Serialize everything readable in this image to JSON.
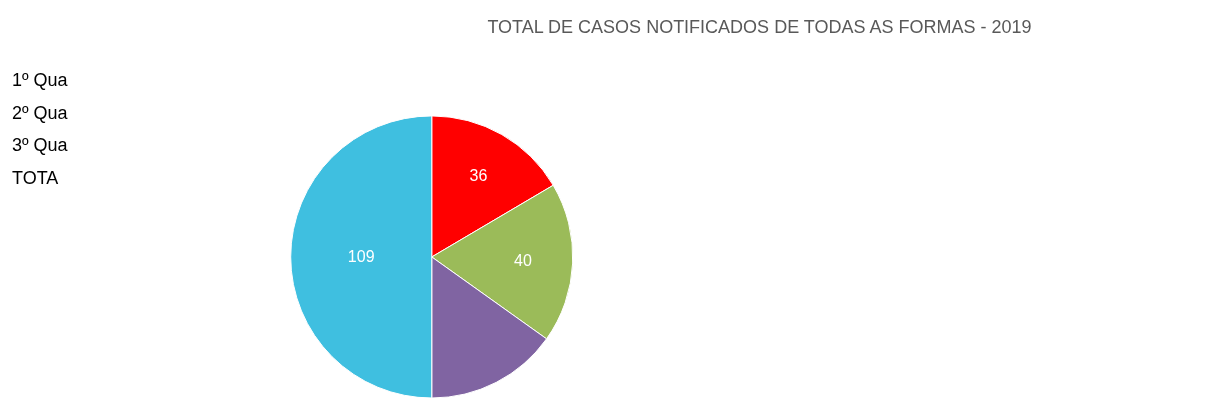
{
  "chart_data": {
    "type": "pie",
    "title": "TOTAL DE CASOS NOTIFICADOS DE TODAS AS FORMAS - 2019",
    "categories": [
      null,
      null,
      null,
      null
    ],
    "values": [
      36,
      40,
      33,
      109
    ],
    "value_labels": [
      "36",
      "40",
      null,
      "109"
    ],
    "colors": [
      "#ff0000",
      "#9bbb59",
      "#8064a2",
      "#3fbfe0"
    ],
    "annotations": [
      "1º Qua",
      "2º Qua",
      "3º Qua",
      "TOTA"
    ],
    "legend": false
  }
}
